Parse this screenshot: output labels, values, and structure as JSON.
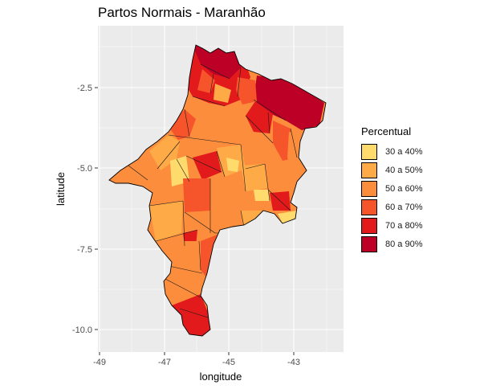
{
  "title": "Partos Normais - Maranhão",
  "x_axis": {
    "label": "longitude",
    "ticks": [
      "-49",
      "-47",
      "-45",
      "-43"
    ]
  },
  "y_axis": {
    "label": "latitude",
    "ticks": [
      "-2.5",
      "-5.0",
      "-7.5",
      "-10.0"
    ]
  },
  "legend": {
    "title": "Percentual",
    "items": [
      {
        "label": "30 a 40%",
        "color": "#ffdb6d"
      },
      {
        "label": "40 a 50%",
        "color": "#feaa47"
      },
      {
        "label": "50 a 60%",
        "color": "#fc8d3c"
      },
      {
        "label": "60 a 70%",
        "color": "#f6542b"
      },
      {
        "label": "70 a 80%",
        "color": "#e31a1c"
      },
      {
        "label": "80 a 90%",
        "color": "#bd0026"
      }
    ]
  },
  "colors": {
    "panel_bg": "#ebebeb",
    "grid": "#ffffff"
  }
}
